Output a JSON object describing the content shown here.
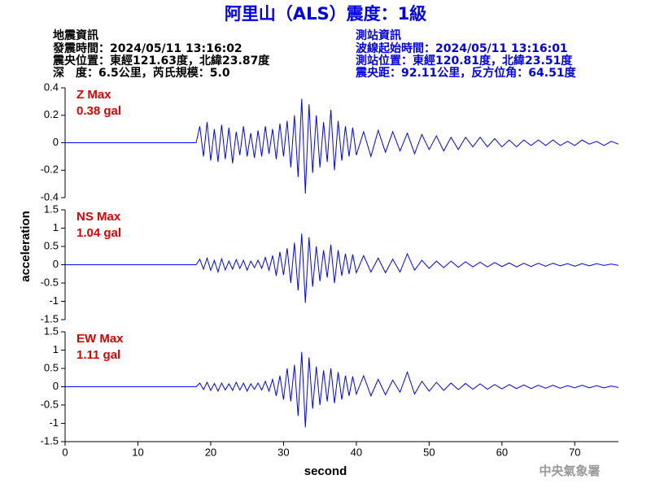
{
  "title": "阿里山（ALS）震度：1級",
  "info_left": [
    "地震資訊",
    "發震時間：2024/05/11 13:16:02",
    "震央位置：東經121.63度，北緯23.87度",
    "深　度：6.5公里，芮氏規模：5.0"
  ],
  "info_right": [
    "測站資訊",
    "波線起始時間：2024/05/11 13:16:01",
    "測站位置：東經120.81度，北緯23.51度",
    "震央距：92.11公里，反方位角：64.51度"
  ],
  "ylabel": "acceleration",
  "xlabel": "second",
  "footer": "中央氣象署",
  "chart_data": [
    {
      "type": "line",
      "annotations": [
        "Z Max",
        "0.38 gal"
      ],
      "x": [
        0,
        18,
        18.5,
        19,
        19.5,
        20,
        20.5,
        21,
        21.5,
        22,
        22.5,
        23,
        23.5,
        24,
        24.5,
        25,
        25.5,
        26,
        26.5,
        27,
        27.5,
        28,
        28.5,
        29,
        29.5,
        30,
        30.5,
        31,
        31.5,
        32,
        32.5,
        33,
        33.5,
        34,
        34.5,
        35,
        35.5,
        36,
        36.5,
        37,
        37.5,
        38,
        38.5,
        39,
        39.5,
        40,
        41,
        42,
        43,
        44,
        45,
        46,
        47,
        48,
        49,
        50,
        51,
        52,
        53,
        54,
        55,
        56,
        57,
        58,
        59,
        60,
        61,
        62,
        63,
        64,
        65,
        66,
        67,
        68,
        69,
        70,
        71,
        72,
        73,
        74,
        75,
        76
      ],
      "series": [
        {
          "name": "Z",
          "color": "#0000ff",
          "values": [
            0,
            0,
            0.12,
            -0.1,
            0.15,
            -0.13,
            0.1,
            -0.14,
            0.13,
            -0.12,
            0.11,
            -0.15,
            0.08,
            -0.09,
            0.12,
            -0.1,
            0.07,
            -0.11,
            0.09,
            -0.1,
            0.12,
            -0.08,
            0.1,
            -0.12,
            0.14,
            -0.1,
            0.16,
            -0.18,
            0.2,
            -0.25,
            0.32,
            -0.37,
            0.28,
            -0.22,
            0.2,
            -0.18,
            0.15,
            -0.14,
            0.24,
            -0.2,
            0.16,
            -0.13,
            0.12,
            -0.1,
            0.11,
            -0.09,
            0.08,
            -0.1,
            0.09,
            -0.07,
            0.08,
            -0.06,
            0.07,
            -0.08,
            0.06,
            -0.05,
            0.05,
            -0.06,
            0.04,
            -0.05,
            0.04,
            -0.03,
            0.04,
            -0.03,
            0.03,
            -0.03,
            0.02,
            -0.03,
            0.02,
            -0.02,
            0.02,
            -0.02,
            0.02,
            -0.02,
            0.01,
            -0.02,
            0.02,
            -0.01,
            0.01,
            -0.02,
            0.01,
            -0.01
          ]
        }
      ],
      "xlim": [
        0,
        76
      ],
      "ylim": [
        -0.4,
        0.4
      ],
      "yticks": [
        -0.4,
        -0.2,
        0,
        0.2,
        0.4
      ]
    },
    {
      "type": "line",
      "annotations": [
        "NS Max",
        "1.04 gal"
      ],
      "x": [
        0,
        18,
        18.5,
        19,
        19.5,
        20,
        20.5,
        21,
        21.5,
        22,
        22.5,
        23,
        23.5,
        24,
        24.5,
        25,
        25.5,
        26,
        26.5,
        27,
        27.5,
        28,
        28.5,
        29,
        29.5,
        30,
        30.5,
        31,
        31.5,
        32,
        32.5,
        33,
        33.5,
        34,
        34.5,
        35,
        35.5,
        36,
        36.5,
        37,
        37.5,
        38,
        38.5,
        39,
        39.5,
        40,
        41,
        42,
        43,
        44,
        45,
        46,
        47,
        48,
        49,
        50,
        51,
        52,
        53,
        54,
        55,
        56,
        57,
        58,
        59,
        60,
        61,
        62,
        63,
        64,
        65,
        66,
        67,
        68,
        69,
        70,
        71,
        72,
        73,
        74,
        75,
        76
      ],
      "series": [
        {
          "name": "NS",
          "color": "#0000ff",
          "values": [
            0,
            0,
            0.15,
            -0.12,
            0.18,
            -0.15,
            0.12,
            -0.2,
            0.16,
            -0.14,
            0.1,
            -0.12,
            0.14,
            -0.1,
            0.12,
            -0.15,
            0.1,
            -0.08,
            0.12,
            -0.1,
            0.2,
            -0.15,
            0.25,
            -0.3,
            0.35,
            -0.28,
            0.45,
            -0.5,
            0.6,
            -0.7,
            0.85,
            -1.04,
            0.75,
            -0.6,
            0.5,
            -0.45,
            0.4,
            -0.35,
            0.55,
            -0.5,
            0.4,
            -0.3,
            0.3,
            -0.25,
            0.28,
            -0.22,
            0.25,
            -0.2,
            0.18,
            -0.22,
            0.15,
            -0.2,
            0.3,
            -0.15,
            0.12,
            -0.1,
            0.1,
            -0.08,
            0.1,
            -0.07,
            0.08,
            -0.06,
            0.07,
            -0.06,
            0.06,
            -0.05,
            0.05,
            -0.06,
            0.04,
            -0.05,
            0.04,
            -0.04,
            0.04,
            -0.03,
            0.03,
            -0.04,
            0.03,
            -0.03,
            0.03,
            -0.02,
            0.02,
            -0.02
          ]
        }
      ],
      "xlim": [
        0,
        76
      ],
      "ylim": [
        -1.5,
        1.5
      ],
      "yticks": [
        -1.5,
        -1,
        -0.5,
        0,
        0.5,
        1,
        1.5
      ]
    },
    {
      "type": "line",
      "annotations": [
        "EW Max",
        "1.11 gal"
      ],
      "x": [
        0,
        18,
        18.5,
        19,
        19.5,
        20,
        20.5,
        21,
        21.5,
        22,
        22.5,
        23,
        23.5,
        24,
        24.5,
        25,
        25.5,
        26,
        26.5,
        27,
        27.5,
        28,
        28.5,
        29,
        29.5,
        30,
        30.5,
        31,
        31.5,
        32,
        32.5,
        33,
        33.5,
        34,
        34.5,
        35,
        35.5,
        36,
        36.5,
        37,
        37.5,
        38,
        38.5,
        39,
        39.5,
        40,
        41,
        42,
        43,
        44,
        45,
        46,
        47,
        48,
        49,
        50,
        51,
        52,
        53,
        54,
        55,
        56,
        57,
        58,
        59,
        60,
        61,
        62,
        63,
        64,
        65,
        66,
        67,
        68,
        69,
        70,
        71,
        72,
        73,
        74,
        75,
        76
      ],
      "series": [
        {
          "name": "EW",
          "color": "#0000ff",
          "values": [
            0,
            0,
            0.1,
            -0.08,
            0.12,
            -0.1,
            0.09,
            -0.12,
            0.1,
            -0.09,
            0.08,
            -0.1,
            0.12,
            -0.09,
            0.1,
            -0.12,
            0.08,
            -0.07,
            0.1,
            -0.09,
            0.15,
            -0.12,
            0.2,
            -0.25,
            0.3,
            -0.35,
            0.5,
            -0.4,
            0.6,
            -0.8,
            0.95,
            -1.11,
            0.8,
            -0.6,
            0.55,
            -0.5,
            0.45,
            -0.4,
            0.5,
            -0.45,
            0.4,
            -0.35,
            0.3,
            -0.25,
            0.28,
            -0.2,
            0.3,
            -0.25,
            0.2,
            -0.22,
            0.18,
            -0.15,
            0.4,
            -0.2,
            0.15,
            -0.12,
            0.12,
            -0.1,
            0.1,
            -0.08,
            0.09,
            -0.07,
            0.08,
            -0.07,
            0.06,
            -0.06,
            0.06,
            -0.05,
            0.05,
            -0.05,
            0.04,
            -0.04,
            0.04,
            -0.04,
            0.03,
            -0.03,
            0.04,
            -0.03,
            0.03,
            -0.03,
            0.02,
            -0.02
          ]
        }
      ],
      "xlim": [
        0,
        76
      ],
      "ylim": [
        -1.5,
        1.5
      ],
      "yticks": [
        -1.5,
        -1,
        -0.5,
        0,
        0.5,
        1,
        1.5
      ],
      "xticks": [
        0,
        10,
        20,
        30,
        40,
        50,
        60,
        70
      ]
    }
  ]
}
